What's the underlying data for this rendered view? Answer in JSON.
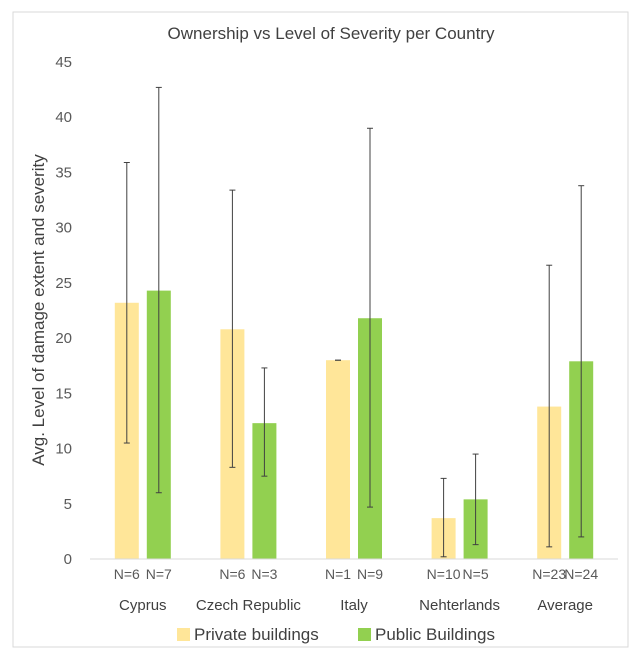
{
  "chart_data": {
    "type": "bar",
    "title": "Ownership vs Level of Severity per Country",
    "ylabel": "Avg. Level of damage extent and severity",
    "xlabel": "",
    "ylim": [
      0,
      45
    ],
    "yticks": [
      0,
      5,
      10,
      15,
      20,
      25,
      30,
      35,
      40,
      45
    ],
    "grid": false,
    "legend_position": "bottom",
    "categories": [
      "Cyprus",
      "Czech Republic",
      "Italy",
      "Nehterlands",
      "Average"
    ],
    "series": [
      {
        "name": "Private buildings",
        "color": "#ffe699",
        "values": [
          23.2,
          20.8,
          18.0,
          3.7,
          13.8
        ],
        "error_low": [
          10.5,
          8.3,
          18.0,
          0.2,
          1.1
        ],
        "error_high": [
          35.9,
          33.4,
          18.0,
          7.3,
          26.6
        ],
        "n_labels": [
          "N=6",
          "N=6",
          "N=1",
          "N=10",
          "N=23"
        ]
      },
      {
        "name": "Public Buildings",
        "color": "#92d050",
        "values": [
          24.3,
          12.3,
          21.8,
          5.4,
          17.9
        ],
        "error_low": [
          6.0,
          7.5,
          4.7,
          1.3,
          2.0
        ],
        "error_high": [
          42.7,
          17.3,
          39.0,
          9.5,
          33.8
        ],
        "n_labels": [
          "N=7",
          "N=3",
          "N=9",
          "N=5",
          "N=24"
        ]
      }
    ]
  }
}
